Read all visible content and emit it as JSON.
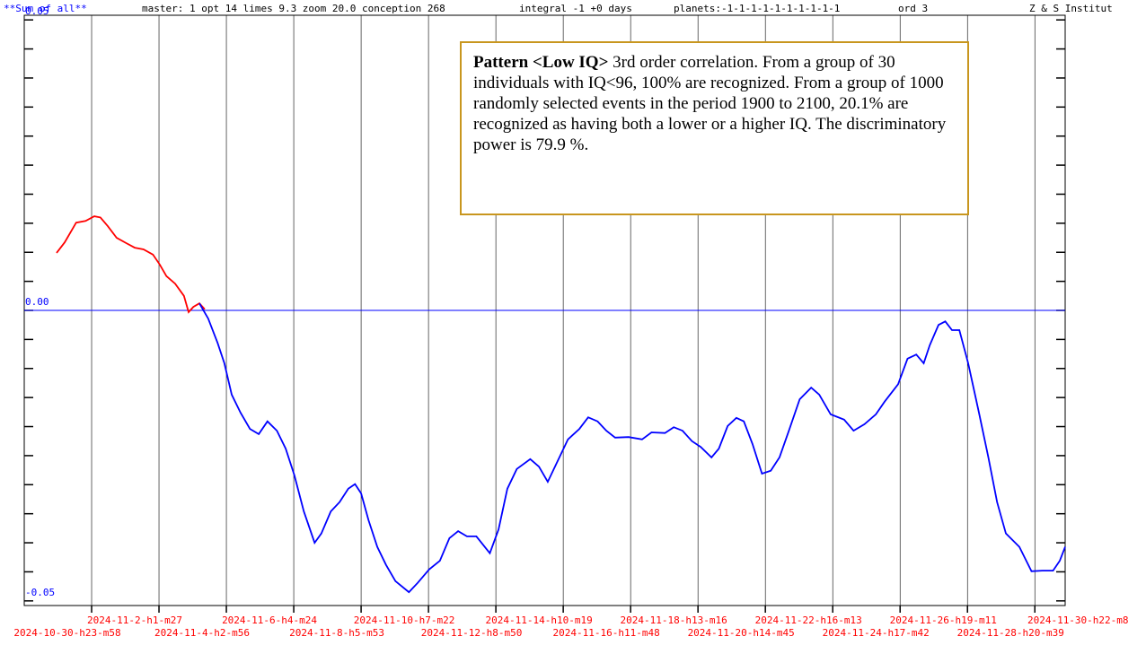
{
  "chart_data": {
    "type": "line",
    "header": [
      {
        "text": "**Sum of all**",
        "color": "#0000ff"
      },
      {
        "text": "master: 1  opt 14 limes 9.3 zoom 20.0 conception 268",
        "color": "#000000"
      },
      {
        "text": "integral -1 +0 days",
        "color": "#000000"
      },
      {
        "text": "planets:-1-1-1-1-1-1-1-1-1-1",
        "color": "#000000"
      },
      {
        "text": "ord 3",
        "color": "#000000"
      },
      {
        "text": "Z & S Institut",
        "color": "#000000"
      }
    ],
    "annotation_bold": "Pattern <Low IQ>",
    "annotation": "3rd order correlation. From a group of 30 individuals with IQ<96, 100% are recognized. From a group of 1000 randomly selected events in the period 1900 to 2100, 20.1% are recognized as having both a lower or a higher IQ. The discriminatory power is 79.9 %.",
    "xlim": [
      -0.64,
      14.81
    ],
    "ylim": [
      -0.0508,
      0.0508
    ],
    "xticks": [
      {
        "value": 0,
        "label": "2024-10-30-h23-m58"
      },
      {
        "value": 1,
        "label": "2024-11-2-h1-m27"
      },
      {
        "value": 2,
        "label": "2024-11-4-h2-m56"
      },
      {
        "value": 3,
        "label": "2024-11-6-h4-m24"
      },
      {
        "value": 4,
        "label": "2024-11-8-h5-m53"
      },
      {
        "value": 5,
        "label": "2024-11-10-h7-m22"
      },
      {
        "value": 6,
        "label": "2024-11-12-h8-m50"
      },
      {
        "value": 7,
        "label": "2024-11-14-h10-m19"
      },
      {
        "value": 8,
        "label": "2024-11-16-h11-m48"
      },
      {
        "value": 9,
        "label": "2024-11-18-h13-m16"
      },
      {
        "value": 10,
        "label": "2024-11-20-h14-m45"
      },
      {
        "value": 11,
        "label": "2024-11-22-h16-m13"
      },
      {
        "value": 12,
        "label": "2024-11-24-h17-m42"
      },
      {
        "value": 13,
        "label": "2024-11-26-h19-m11"
      },
      {
        "value": 14,
        "label": "2024-11-28-h20-m39"
      },
      {
        "value": 15,
        "label": "2024-11-30-h22-m8"
      }
    ],
    "xgrid": [
      0.36,
      1.36,
      2.36,
      3.36,
      4.36,
      5.36,
      6.36,
      7.36,
      8.36,
      9.36,
      10.36,
      11.36,
      12.36,
      13.36,
      14.36
    ],
    "xtick_color": "#ff0000",
    "yticks": [
      {
        "value": 0.05,
        "label": "0.05"
      },
      {
        "value": 0,
        "label": "0.00"
      },
      {
        "value": -0.05,
        "label": "-0.05"
      }
    ],
    "ytick_color": "#0000ff",
    "minor_yticks": [
      -0.05,
      -0.045,
      -0.04,
      -0.035,
      -0.03,
      -0.025,
      -0.02,
      -0.015,
      -0.01,
      -0.005,
      0,
      0.005,
      0.01,
      0.015,
      0.02,
      0.025,
      0.03,
      0.035,
      0.04,
      0.045,
      0.05
    ],
    "zero_line_color": "#0000ff",
    "grid": true,
    "series": [
      {
        "color": "#ff0000",
        "x": [
          -0.16,
          -0.04,
          0.13,
          0.27,
          0.4,
          0.49,
          0.6,
          0.73,
          0.87,
          1.0,
          1.13,
          1.27,
          1.37,
          1.47,
          1.6,
          1.73,
          1.8,
          1.87,
          1.96,
          2.04
        ],
        "values": [
          0.0099,
          0.0117,
          0.0151,
          0.0154,
          0.0162,
          0.016,
          0.0145,
          0.0125,
          0.0116,
          0.0108,
          0.0105,
          0.0096,
          0.0079,
          0.0059,
          0.0046,
          0.0025,
          -0.0003,
          0.0006,
          0.0012,
          0.0002
        ]
      },
      {
        "color": "#0000ff",
        "x": [
          1.96,
          2.09,
          2.23,
          2.33,
          2.44,
          2.57,
          2.71,
          2.84,
          2.97,
          3.11,
          3.24,
          3.37,
          3.51,
          3.67,
          3.77,
          3.91,
          4.04,
          4.17,
          4.27,
          4.36,
          4.47,
          4.6,
          4.73,
          4.87,
          5.07,
          5.2,
          5.37,
          5.53,
          5.67,
          5.8,
          5.93,
          6.07,
          6.27,
          6.4,
          6.53,
          6.67,
          6.87,
          7.0,
          7.13,
          7.27,
          7.43,
          7.6,
          7.73,
          7.87,
          8.0,
          8.13,
          8.33,
          8.53,
          8.67,
          8.87,
          9.0,
          9.13,
          9.27,
          9.4,
          9.56,
          9.67,
          9.8,
          9.93,
          10.04,
          10.17,
          10.31,
          10.44,
          10.57,
          10.71,
          10.87,
          11.04,
          11.16,
          11.33,
          11.53,
          11.67,
          11.83,
          12.0,
          12.13,
          12.33,
          12.47,
          12.6,
          12.71,
          12.8,
          12.93,
          13.03,
          13.13,
          13.24,
          13.37,
          13.53,
          13.67,
          13.8,
          13.93,
          14.13,
          14.31,
          14.47,
          14.63,
          14.73,
          14.81
        ],
        "values": [
          0.0012,
          -0.0014,
          -0.0056,
          -0.0091,
          -0.0145,
          -0.0176,
          -0.0204,
          -0.0213,
          -0.0191,
          -0.0207,
          -0.0238,
          -0.0284,
          -0.0346,
          -0.04,
          -0.0384,
          -0.0346,
          -0.033,
          -0.0307,
          -0.0299,
          -0.0315,
          -0.0361,
          -0.0407,
          -0.0438,
          -0.0466,
          -0.0485,
          -0.0469,
          -0.0446,
          -0.0431,
          -0.0392,
          -0.038,
          -0.0389,
          -0.0389,
          -0.0418,
          -0.0377,
          -0.0307,
          -0.0273,
          -0.0256,
          -0.0269,
          -0.0295,
          -0.0261,
          -0.0222,
          -0.0204,
          -0.0184,
          -0.0191,
          -0.0207,
          -0.0219,
          -0.0218,
          -0.0222,
          -0.021,
          -0.0211,
          -0.0201,
          -0.0207,
          -0.0225,
          -0.0235,
          -0.0253,
          -0.0238,
          -0.0199,
          -0.0185,
          -0.0191,
          -0.023,
          -0.0281,
          -0.0276,
          -0.0253,
          -0.0207,
          -0.0153,
          -0.0133,
          -0.0145,
          -0.0179,
          -0.0188,
          -0.0207,
          -0.0196,
          -0.0179,
          -0.0157,
          -0.0127,
          -0.0083,
          -0.0076,
          -0.0091,
          -0.006,
          -0.0025,
          -0.0019,
          -0.0034,
          -0.0034,
          -0.0091,
          -0.0176,
          -0.0253,
          -0.033,
          -0.0384,
          -0.0407,
          -0.0449,
          -0.0448,
          -0.0448,
          -0.0431,
          -0.0407
        ]
      }
    ]
  }
}
